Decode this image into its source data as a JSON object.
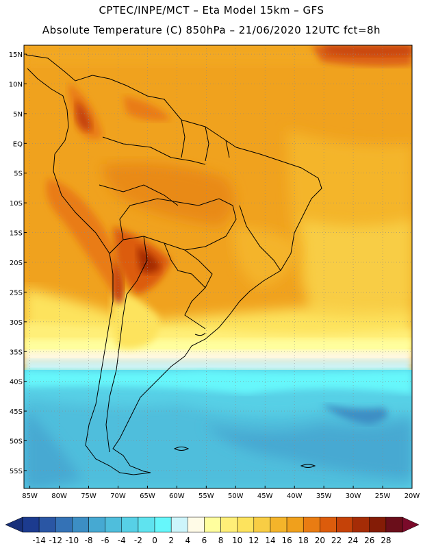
{
  "header": {
    "line1": "CPTEC/INPE/MCT –  Eta Model 15km – GFS",
    "line2": "Absolute Temperature (C) 850hPa – 21/06/2020 12UTC fct=8h"
  },
  "map": {
    "lat_ticks": [
      "15N",
      "10N",
      "5N",
      "EQ",
      "5S",
      "10S",
      "15S",
      "20S",
      "25S",
      "30S",
      "35S",
      "40S",
      "45S",
      "50S",
      "55S"
    ],
    "lon_ticks": [
      "85W",
      "80W",
      "75W",
      "70W",
      "65W",
      "60W",
      "55W",
      "50W",
      "45W",
      "40W",
      "35W",
      "30W",
      "25W",
      "20W"
    ],
    "lat_range": [
      -58,
      16.5
    ],
    "lon_range": [
      -86,
      -20
    ],
    "gridlines": true
  },
  "colorbar": {
    "labels": [
      "-14",
      "-12",
      "-10",
      "-8",
      "-6",
      "-4",
      "-2",
      "0",
      "2",
      "4",
      "6",
      "8",
      "10",
      "12",
      "14",
      "16",
      "18",
      "20",
      "22",
      "24",
      "26",
      "28"
    ],
    "colors": [
      "#1c3b8f",
      "#2a56a4",
      "#3472b6",
      "#3c8ec4",
      "#46a9d2",
      "#4fbedc",
      "#57d0e6",
      "#5fe3ef",
      "#66f7fb",
      "#cdf5fb",
      "#fffbe7",
      "#fffe9e",
      "#ffef78",
      "#fde35d",
      "#f8cd44",
      "#f4b42a",
      "#f0a01c",
      "#e97c12",
      "#dc5c0c",
      "#c54208",
      "#a52c06",
      "#841c06",
      "#6a0e1a"
    ],
    "under_color": "#18307a",
    "over_color": "#7a0a2a"
  }
}
